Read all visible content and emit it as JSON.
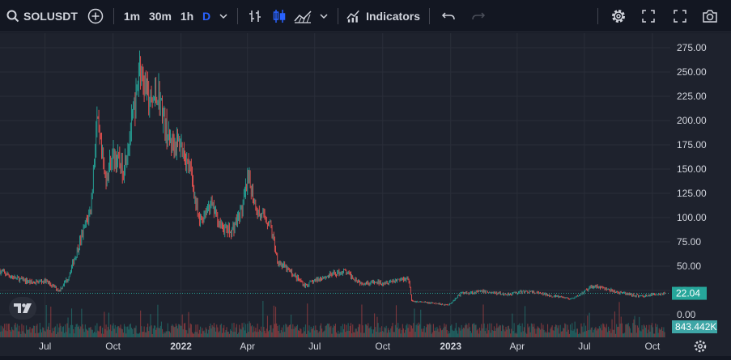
{
  "toolbar": {
    "symbol": "SOLUSDT",
    "intervals": [
      "1m",
      "30m",
      "1h",
      "D"
    ],
    "active_interval": "D",
    "indicators_label": "Indicators",
    "accent_color": "#2962ff"
  },
  "chart_data": {
    "type": "candlestick",
    "symbol": "SOLUSDT",
    "interval": "D",
    "ylim": [
      0,
      280
    ],
    "price_ticks": [
      "275.00",
      "250.00",
      "225.00",
      "200.00",
      "175.00",
      "150.00",
      "125.00",
      "100.00",
      "75.00",
      "50.00",
      "25.00",
      "0.00"
    ],
    "time_labels": [
      "Jul",
      "Oct",
      "2022",
      "Apr",
      "Jul",
      "Oct",
      "2023",
      "Apr",
      "Jul",
      "Oct"
    ],
    "last_price": "22.04",
    "last_volume": "843.442K",
    "grid": true,
    "up_color": "#26a69a",
    "down_color": "#ef5350",
    "price_path": [
      [
        "2021-05-01",
        45
      ],
      [
        "2021-05-20",
        38
      ],
      [
        "2021-06-15",
        33
      ],
      [
        "2021-07-01",
        35
      ],
      [
        "2021-07-20",
        25
      ],
      [
        "2021-08-01",
        38
      ],
      [
        "2021-08-15",
        70
      ],
      [
        "2021-09-01",
        110
      ],
      [
        "2021-09-09",
        200
      ],
      [
        "2021-09-20",
        140
      ],
      [
        "2021-10-01",
        165
      ],
      [
        "2021-10-15",
        150
      ],
      [
        "2021-11-01",
        220
      ],
      [
        "2021-11-06",
        260
      ],
      [
        "2021-11-20",
        215
      ],
      [
        "2021-12-01",
        230
      ],
      [
        "2021-12-15",
        180
      ],
      [
        "2022-01-01",
        175
      ],
      [
        "2022-01-15",
        145
      ],
      [
        "2022-01-25",
        95
      ],
      [
        "2022-02-10",
        115
      ],
      [
        "2022-02-25",
        90
      ],
      [
        "2022-03-10",
        85
      ],
      [
        "2022-03-25",
        110
      ],
      [
        "2022-04-02",
        140
      ],
      [
        "2022-04-15",
        105
      ],
      [
        "2022-05-01",
        95
      ],
      [
        "2022-05-12",
        55
      ],
      [
        "2022-06-01",
        42
      ],
      [
        "2022-06-18",
        30
      ],
      [
        "2022-07-10",
        38
      ],
      [
        "2022-08-10",
        45
      ],
      [
        "2022-09-01",
        33
      ],
      [
        "2022-10-01",
        33
      ],
      [
        "2022-11-05",
        38
      ],
      [
        "2022-11-09",
        14
      ],
      [
        "2022-12-29",
        10
      ],
      [
        "2023-01-15",
        22
      ],
      [
        "2023-02-15",
        24
      ],
      [
        "2023-03-15",
        21
      ],
      [
        "2023-04-15",
        24
      ],
      [
        "2023-05-15",
        20
      ],
      [
        "2023-06-15",
        16
      ],
      [
        "2023-07-14",
        30
      ],
      [
        "2023-08-15",
        23
      ],
      [
        "2023-09-15",
        19
      ],
      [
        "2023-10-15",
        22
      ]
    ]
  }
}
